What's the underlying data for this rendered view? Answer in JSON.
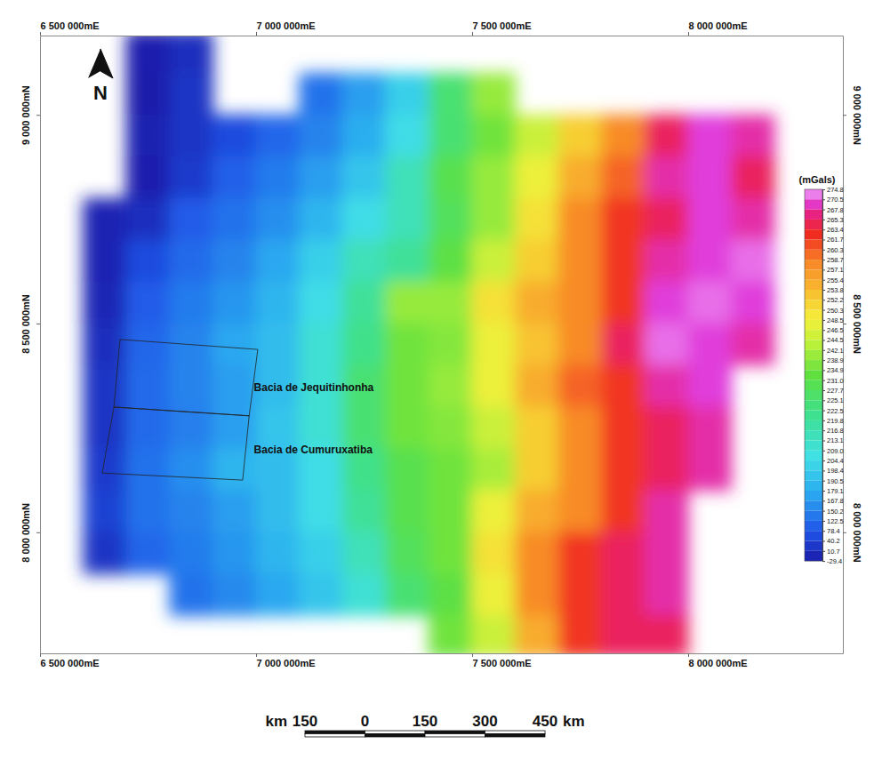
{
  "chart_data": {
    "type": "heatmap",
    "xlim": [
      6500000,
      8358000
    ],
    "ylim": [
      7710000,
      9190000
    ],
    "xticks": [
      {
        "value": 6500000,
        "label": "6 500 000mE"
      },
      {
        "value": 7000000,
        "label": "7 000 000mE"
      },
      {
        "value": 7500000,
        "label": "7 500 000mE"
      },
      {
        "value": 8000000,
        "label": "8 000 000mE"
      }
    ],
    "yticks": [
      {
        "value": 8000000,
        "label": "8 000 000mN"
      },
      {
        "value": 8500000,
        "label": "8 500 000mN"
      },
      {
        "value": 9000000,
        "label": "9 000 000mN"
      }
    ],
    "x": [
      6550000,
      6650000,
      6750000,
      6850000,
      6950000,
      7050000,
      7150000,
      7250000,
      7350000,
      7450000,
      7550000,
      7650000,
      7750000,
      7850000,
      7950000,
      8050000,
      8150000,
      8250000,
      8350000
    ],
    "y": [
      9150000,
      9050000,
      8950000,
      8850000,
      8750000,
      8650000,
      8550000,
      8450000,
      8350000,
      8250000,
      8150000,
      8050000,
      7950000,
      7850000,
      7750000
    ],
    "values": [
      [
        null,
        null,
        -20,
        10,
        null,
        null,
        null,
        null,
        null,
        null,
        null,
        null,
        null,
        null,
        null,
        null,
        null,
        null,
        null
      ],
      [
        null,
        null,
        -25,
        20,
        null,
        null,
        130,
        170,
        200,
        225,
        240,
        null,
        null,
        null,
        null,
        null,
        null,
        null,
        null
      ],
      [
        null,
        null,
        -15,
        20,
        60,
        110,
        150,
        180,
        205,
        225,
        235,
        245,
        252,
        258,
        265,
        270,
        268,
        null,
        null
      ],
      [
        null,
        null,
        -20,
        30,
        100,
        140,
        170,
        195,
        215,
        230,
        240,
        248,
        255,
        260,
        268,
        270,
        265,
        null,
        null
      ],
      [
        null,
        -10,
        10,
        90,
        130,
        160,
        185,
        205,
        215,
        228,
        240,
        250,
        258,
        262,
        265,
        270,
        268,
        null,
        null
      ],
      [
        null,
        -10,
        60,
        120,
        150,
        175,
        200,
        215,
        220,
        232,
        245,
        252,
        258,
        262,
        268,
        270,
        272,
        null,
        null
      ],
      [
        null,
        -5,
        90,
        140,
        165,
        185,
        205,
        220,
        240,
        240,
        250,
        255,
        258,
        262,
        270,
        272,
        270,
        null,
        null
      ],
      [
        null,
        10,
        110,
        150,
        175,
        190,
        210,
        222,
        235,
        238,
        248,
        253,
        258,
        265,
        272,
        270,
        268,
        null,
        null
      ],
      [
        null,
        20,
        120,
        150,
        170,
        190,
        210,
        225,
        235,
        240,
        248,
        255,
        260,
        262,
        268,
        270,
        null,
        null,
        null
      ],
      [
        null,
        20,
        120,
        145,
        170,
        195,
        210,
        225,
        235,
        238,
        245,
        252,
        258,
        262,
        265,
        268,
        null,
        null,
        null
      ],
      [
        null,
        30,
        130,
        160,
        185,
        190,
        205,
        222,
        230,
        235,
        242,
        252,
        258,
        262,
        265,
        268,
        null,
        null,
        null
      ],
      [
        null,
        40,
        130,
        150,
        170,
        190,
        205,
        220,
        230,
        235,
        248,
        255,
        258,
        262,
        268,
        null,
        null,
        null,
        null
      ],
      [
        null,
        20,
        110,
        140,
        165,
        185,
        200,
        215,
        228,
        235,
        250,
        258,
        262,
        265,
        268,
        null,
        null,
        null,
        null
      ],
      [
        null,
        null,
        null,
        130,
        155,
        175,
        195,
        210,
        225,
        232,
        248,
        258,
        262,
        265,
        268,
        null,
        null,
        null,
        null
      ],
      [
        null,
        null,
        null,
        null,
        null,
        null,
        null,
        null,
        null,
        235,
        245,
        255,
        262,
        265,
        265,
        null,
        null,
        null,
        null
      ]
    ],
    "colorbar": {
      "title": "(mGals)",
      "range": [
        -29.4,
        274.8
      ],
      "ticks": [
        274.8,
        270.5,
        267.8,
        265.3,
        263.4,
        261.7,
        260.3,
        258.7,
        257.1,
        255.4,
        253.8,
        252.2,
        250.3,
        248.5,
        246.5,
        244.5,
        242.1,
        238.9,
        234.9,
        {
          "value": 231,
          "label": "231.0"
        },
        227.7,
        225.1,
        222.5,
        219.8,
        216.8,
        213.1,
        {
          "value": 209,
          "label": "209.0"
        },
        204.4,
        198.4,
        190.5,
        179.1,
        167.8,
        150.2,
        122.5,
        78.4,
        40.2,
        10.7,
        -29.4
      ]
    },
    "annotations": [
      {
        "text": "Bacia de Jequitinhonha",
        "x": 6995000,
        "y": 8338000,
        "outline": [
          [
            6685000,
            8462000
          ],
          [
            7004000,
            8438000
          ],
          [
            6984000,
            8279000
          ],
          [
            6671000,
            8300000
          ]
        ]
      },
      {
        "text": "Bacia de Cumuruxatiba",
        "x": 6995000,
        "y": 8189000,
        "outline": [
          [
            6671000,
            8300000
          ],
          [
            6984000,
            8279000
          ],
          [
            6969000,
            8125000
          ],
          [
            6644000,
            8142000
          ]
        ]
      }
    ],
    "scale_bar": {
      "unit": "km",
      "ticks": [
        {
          "value": -150,
          "label": "150"
        },
        0,
        150,
        300,
        450
      ]
    },
    "north_label": "N"
  }
}
